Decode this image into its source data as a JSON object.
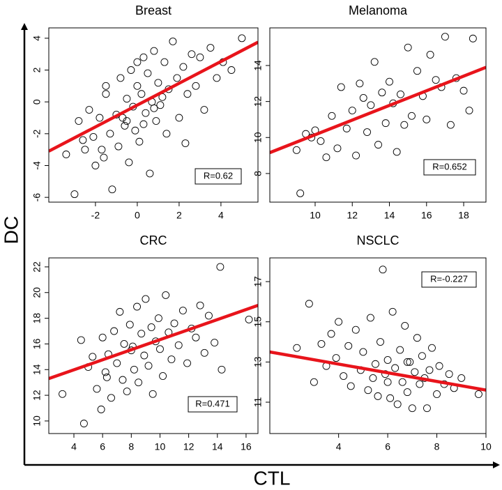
{
  "y_label": "DC",
  "x_label": "CTL",
  "chart_data": [
    {
      "type": "scatter",
      "title": "Breast",
      "annotation": "R=0.62",
      "xlim": [
        -4.23,
        5.77
      ],
      "ylim": [
        -6.3,
        4.65
      ],
      "xticks": [
        -2,
        0,
        2,
        4
      ],
      "yticks": [
        -6,
        -4,
        -2,
        0,
        2,
        4
      ],
      "point_color": "#000000",
      "x": [
        -3.4,
        -3.0,
        -2.8,
        -2.5,
        -2.3,
        -2.1,
        -2.0,
        -1.8,
        -1.6,
        -1.5,
        -1.3,
        -1.2,
        -1.0,
        -0.9,
        -0.8,
        -0.6,
        -0.5,
        -0.4,
        -0.3,
        -0.2,
        -0.1,
        0.0,
        0.1,
        0.2,
        0.3,
        0.4,
        0.5,
        0.6,
        0.7,
        0.8,
        0.9,
        1.0,
        1.1,
        1.3,
        1.4,
        1.5,
        1.7,
        1.9,
        2.0,
        2.2,
        2.4,
        2.6,
        2.8,
        3.0,
        3.2,
        3.5,
        3.8,
        4.1,
        4.5,
        5.0,
        -1.5,
        -0.7,
        0.3,
        1.2,
        -2.6,
        -1.7,
        0.0,
        2.3,
        -0.5,
        0.8
      ],
      "y": [
        -3.3,
        -5.8,
        -1.2,
        -3.0,
        -0.5,
        -2.2,
        -4.0,
        -1.0,
        -3.5,
        0.5,
        -2.0,
        -5.5,
        -0.8,
        -2.8,
        1.5,
        -1.5,
        0.2,
        -3.8,
        2.0,
        -0.3,
        -1.8,
        1.0,
        -2.5,
        0.5,
        2.8,
        -0.7,
        1.8,
        -4.5,
        0.0,
        3.2,
        -1.2,
        1.2,
        -0.2,
        2.5,
        -2.0,
        0.8,
        3.8,
        1.5,
        -1.0,
        2.2,
        0.5,
        3.0,
        1.0,
        2.8,
        -0.5,
        3.4,
        1.5,
        2.5,
        2.0,
        4.0,
        1.0,
        -1.0,
        -1.4,
        0.3,
        -2.4,
        -3.0,
        2.5,
        -2.6,
        -1.2,
        -0.4
      ],
      "trend": {
        "color": "#e8141b",
        "x": [
          -4.23,
          5.77
        ],
        "y": [
          -3.1,
          3.75
        ]
      }
    },
    {
      "type": "scatter",
      "title": "Melanoma",
      "annotation": "R=0.652",
      "xlim": [
        7.56,
        19.2
      ],
      "ylim": [
        6.41,
        16.09
      ],
      "xticks": [
        10,
        12,
        14,
        16,
        18
      ],
      "yticks": [
        8,
        10,
        12,
        14
      ],
      "point_color": "#000000",
      "x": [
        9.0,
        9.2,
        9.5,
        9.8,
        10.0,
        10.3,
        10.6,
        10.9,
        11.2,
        11.4,
        11.7,
        12.0,
        12.2,
        12.4,
        12.6,
        12.8,
        13.0,
        13.2,
        13.4,
        13.6,
        13.8,
        14.0,
        14.2,
        14.4,
        14.6,
        14.8,
        15.0,
        15.2,
        15.5,
        15.8,
        16.0,
        16.2,
        16.5,
        16.8,
        17.0,
        17.3,
        17.6,
        18.0,
        18.3,
        18.5
      ],
      "y": [
        9.3,
        6.9,
        10.2,
        10.0,
        10.4,
        9.8,
        8.9,
        11.2,
        9.4,
        12.8,
        10.5,
        11.5,
        9.0,
        13.0,
        12.2,
        10.3,
        11.8,
        14.2,
        9.6,
        12.5,
        10.8,
        13.1,
        11.9,
        9.2,
        12.4,
        10.7,
        15.0,
        11.2,
        13.7,
        12.3,
        11.0,
        14.6,
        13.2,
        12.8,
        15.6,
        10.7,
        13.3,
        12.6,
        11.5,
        15.5
      ],
      "trend": {
        "color": "#e8141b",
        "x": [
          7.56,
          19.2
        ],
        "y": [
          9.16,
          13.9
        ]
      }
    },
    {
      "type": "scatter",
      "title": "CRC",
      "annotation": "R=0.471",
      "xlim": [
        2.25,
        16.83
      ],
      "ylim": [
        9.02,
        22.7
      ],
      "xticks": [
        4,
        6,
        8,
        10,
        12,
        14,
        16
      ],
      "yticks": [
        10,
        12,
        14,
        16,
        18,
        20,
        22
      ],
      "point_color": "#000000",
      "x": [
        3.2,
        4.5,
        4.7,
        5.0,
        5.3,
        5.6,
        5.9,
        6.0,
        6.2,
        6.4,
        6.6,
        6.8,
        7.0,
        7.2,
        7.4,
        7.5,
        7.7,
        7.9,
        8.0,
        8.2,
        8.4,
        8.5,
        8.7,
        8.9,
        9.0,
        9.2,
        9.4,
        9.5,
        9.7,
        9.9,
        10.0,
        10.2,
        10.4,
        10.6,
        10.8,
        11.0,
        11.3,
        11.6,
        11.9,
        12.2,
        12.5,
        12.8,
        13.1,
        13.4,
        13.8,
        14.2,
        14.3,
        16.2,
        6.3,
        8.1
      ],
      "y": [
        12.1,
        16.3,
        9.8,
        14.2,
        15.0,
        12.5,
        10.9,
        16.5,
        13.8,
        15.2,
        11.8,
        17.0,
        14.5,
        18.5,
        13.2,
        16.0,
        12.3,
        17.5,
        15.5,
        14.0,
        18.9,
        13.0,
        16.8,
        15.1,
        19.5,
        14.3,
        17.3,
        12.1,
        16.2,
        18.0,
        15.6,
        13.5,
        19.8,
        16.9,
        14.8,
        17.6,
        15.9,
        18.6,
        14.5,
        17.2,
        16.5,
        19.0,
        15.3,
        18.2,
        16.1,
        22.0,
        14.0,
        17.9,
        13.4,
        15.8
      ],
      "trend": {
        "color": "#e8141b",
        "x": [
          2.25,
          16.83
        ],
        "y": [
          13.3,
          19.0
        ]
      }
    },
    {
      "type": "scatter",
      "title": "NSCLC",
      "annotation": "R=-0.227",
      "xlim": [
        1.2,
        10.0
      ],
      "ylim": [
        9.44,
        18.18
      ],
      "xticks": [
        4,
        6,
        8,
        10
      ],
      "yticks": [
        11,
        13,
        15,
        17
      ],
      "point_color": "#000000",
      "x": [
        2.3,
        2.8,
        3.0,
        3.3,
        3.5,
        3.7,
        3.9,
        4.0,
        4.2,
        4.4,
        4.5,
        4.7,
        4.9,
        5.0,
        5.2,
        5.3,
        5.5,
        5.6,
        5.7,
        5.8,
        5.9,
        6.0,
        6.1,
        6.2,
        6.3,
        6.4,
        6.5,
        6.6,
        6.7,
        6.8,
        6.9,
        7.0,
        7.1,
        7.2,
        7.3,
        7.4,
        7.5,
        7.6,
        7.8,
        8.0,
        8.1,
        8.3,
        8.5,
        8.7,
        9.0,
        9.7,
        6.0,
        6.8,
        5.4,
        7.7
      ],
      "y": [
        13.7,
        15.9,
        12.0,
        13.9,
        12.8,
        14.4,
        13.2,
        15.0,
        12.3,
        13.8,
        11.8,
        14.6,
        12.6,
        13.5,
        11.6,
        15.2,
        12.9,
        11.3,
        14.0,
        17.6,
        12.4,
        13.1,
        11.2,
        15.5,
        12.7,
        10.9,
        13.6,
        12.0,
        14.8,
        11.5,
        13.0,
        10.7,
        12.5,
        14.2,
        11.9,
        13.3,
        12.2,
        10.7,
        13.7,
        11.4,
        12.8,
        11.9,
        12.4,
        11.7,
        12.2,
        11.4,
        12.0,
        13.0,
        12.2,
        12.6
      ],
      "trend": {
        "color": "#e8141b",
        "x": [
          1.2,
          10.0
        ],
        "y": [
          13.5,
          11.6
        ]
      }
    }
  ]
}
